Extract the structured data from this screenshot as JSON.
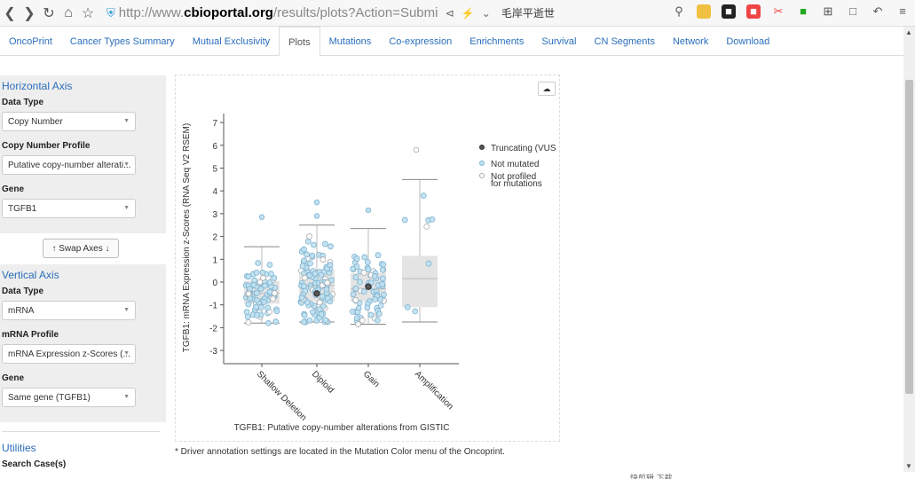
{
  "browser": {
    "url_prefix": "http://www.",
    "url_domain": "cbioportal.org",
    "url_rest": "/results/plots?Action=Submit&RPP/",
    "search_text": "毛岸平逝世",
    "status_text": "快剪辑   下载"
  },
  "tabs": [
    {
      "label": "OncoPrint"
    },
    {
      "label": "Cancer Types Summary"
    },
    {
      "label": "Mutual Exclusivity"
    },
    {
      "label": "Plots"
    },
    {
      "label": "Mutations"
    },
    {
      "label": "Co-expression"
    },
    {
      "label": "Enrichments"
    },
    {
      "label": "Survival"
    },
    {
      "label": "CN Segments"
    },
    {
      "label": "Network"
    },
    {
      "label": "Download"
    }
  ],
  "horizontal": {
    "title": "Horizontal Axis",
    "data_type_label": "Data Type",
    "data_type_value": "Copy Number",
    "profile_label": "Copy Number Profile",
    "profile_value": "Putative copy-number alterati...",
    "gene_label": "Gene",
    "gene_value": "TGFB1"
  },
  "swap_label": "↑ Swap Axes ↓",
  "vertical": {
    "title": "Vertical Axis",
    "data_type_label": "Data Type",
    "data_type_value": "mRNA",
    "profile_label": "mRNA Profile",
    "profile_value": "mRNA Expression z-Scores (...",
    "gene_label": "Gene",
    "gene_value": "Same gene (TGFB1)"
  },
  "utilities": {
    "title": "Utilities",
    "search_label": "Search Case(s)"
  },
  "footnote": "* Driver annotation settings are located in the Mutation Color menu of the Oncoprint.",
  "colors": {
    "link": "#2a6ebb",
    "point_fill": "#bfe0f0",
    "point_stroke": "#7fb3d0",
    "truncating": "#555555"
  },
  "chart_data": {
    "type": "scatter",
    "xlabel": "TGFB1: Putative copy-number alterations from GISTIC",
    "ylabel": "TGFB1: mRNA Expression z-Scores (RNA Seq V2 RSEM)",
    "ylim": [
      -3.6,
      7.4
    ],
    "yticks": [
      -3,
      -2,
      -1,
      0,
      1,
      2,
      3,
      4,
      5,
      6,
      7
    ],
    "categories": [
      "Shallow Deletion",
      "Diploid",
      "Gain",
      "Amplification"
    ],
    "boxes": [
      {
        "category": "Shallow Deletion",
        "min": -1.8,
        "q1": -0.95,
        "median": -0.5,
        "q3": 0.05,
        "max": 1.55
      },
      {
        "category": "Diploid",
        "min": -1.75,
        "q1": -0.85,
        "median": -0.15,
        "q3": 0.55,
        "max": 2.5
      },
      {
        "category": "Gain",
        "min": -1.85,
        "q1": -0.85,
        "median": -0.3,
        "q3": 0.4,
        "max": 2.35
      },
      {
        "category": "Amplification",
        "min": -1.75,
        "q1": -1.1,
        "median": 0.15,
        "q3": 1.15,
        "max": 4.5
      }
    ],
    "outliers": [
      {
        "category": "Shallow Deletion",
        "y": 2.85
      },
      {
        "category": "Diploid",
        "y": 3.5
      },
      {
        "category": "Diploid",
        "y": 2.9
      },
      {
        "category": "Gain",
        "y": 3.15
      },
      {
        "category": "Amplification",
        "y": 5.8
      }
    ],
    "truncating": [
      {
        "category": "Diploid",
        "y": -0.5
      },
      {
        "category": "Gain",
        "y": -0.2
      }
    ],
    "legend": {
      "placement": "right",
      "entries": [
        "Truncating (VUS",
        "Not mutated",
        "Not profiled",
        "for mutations"
      ]
    }
  }
}
